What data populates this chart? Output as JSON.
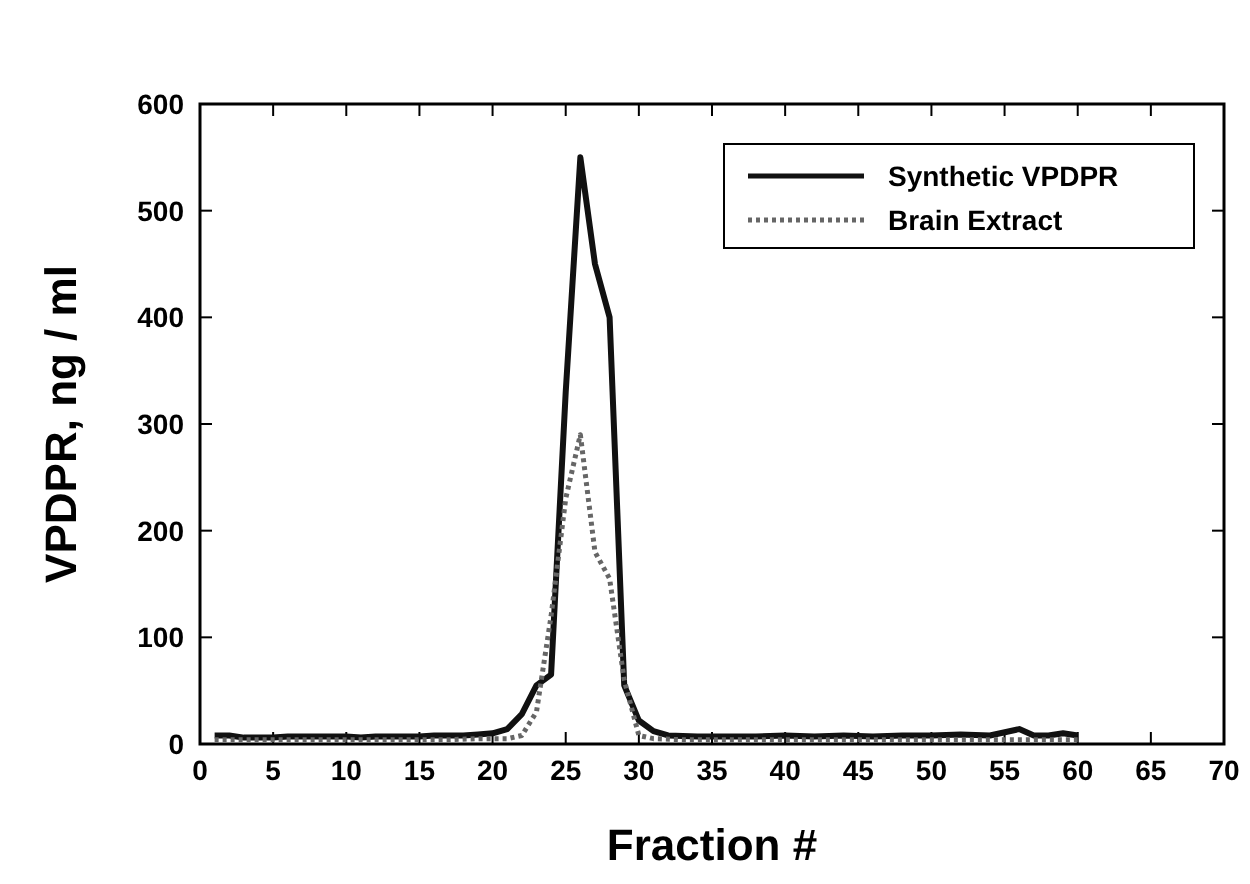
{
  "chart_data": {
    "type": "line",
    "xlabel": "Fraction #",
    "ylabel": "VPDPR, ng / ml",
    "xlim": [
      0,
      70
    ],
    "xticks": [
      0,
      5,
      10,
      15,
      20,
      25,
      30,
      35,
      40,
      45,
      50,
      55,
      60,
      65,
      70
    ],
    "ylim": [
      0,
      600
    ],
    "yticks": [
      0,
      100,
      200,
      300,
      400,
      500,
      600
    ],
    "legend": "top right",
    "grid": false,
    "marker": "none",
    "series": [
      {
        "name": "Synthetic VPDPR",
        "color": "#111111",
        "line_style": "solid",
        "x": [
          1,
          2,
          3,
          4,
          5,
          6,
          7,
          8,
          9,
          10,
          11,
          12,
          13,
          14,
          15,
          16,
          17,
          18,
          19,
          20,
          21,
          22,
          23,
          24,
          25,
          26,
          27,
          28,
          29,
          30,
          31,
          32,
          34,
          36,
          38,
          40,
          42,
          44,
          46,
          48,
          50,
          52,
          54,
          56,
          57,
          58,
          59,
          60
        ],
        "values": [
          8,
          8,
          6,
          6,
          6,
          7,
          7,
          7,
          7,
          7,
          6,
          7,
          7,
          7,
          7,
          8,
          8,
          8,
          9,
          10,
          14,
          28,
          55,
          65,
          330,
          550,
          450,
          400,
          55,
          22,
          12,
          8,
          7,
          7,
          7,
          8,
          7,
          8,
          7,
          8,
          8,
          9,
          8,
          14,
          8,
          8,
          10,
          8
        ]
      },
      {
        "name": "Brain Extract",
        "color": "#666666",
        "line_style": "dotted",
        "x": [
          1,
          3,
          5,
          7,
          9,
          11,
          13,
          15,
          17,
          19,
          21,
          22,
          23,
          24,
          25,
          26,
          27,
          28,
          29,
          30,
          31,
          33,
          35,
          37,
          39,
          41,
          43,
          45,
          47,
          49,
          51,
          53,
          55,
          57,
          59,
          60
        ],
        "values": [
          4,
          4,
          4,
          4,
          4,
          4,
          4,
          4,
          4,
          5,
          5,
          8,
          30,
          120,
          230,
          290,
          180,
          155,
          60,
          8,
          5,
          4,
          4,
          4,
          4,
          4,
          4,
          4,
          4,
          4,
          4,
          4,
          4,
          4,
          4,
          4
        ]
      }
    ]
  }
}
